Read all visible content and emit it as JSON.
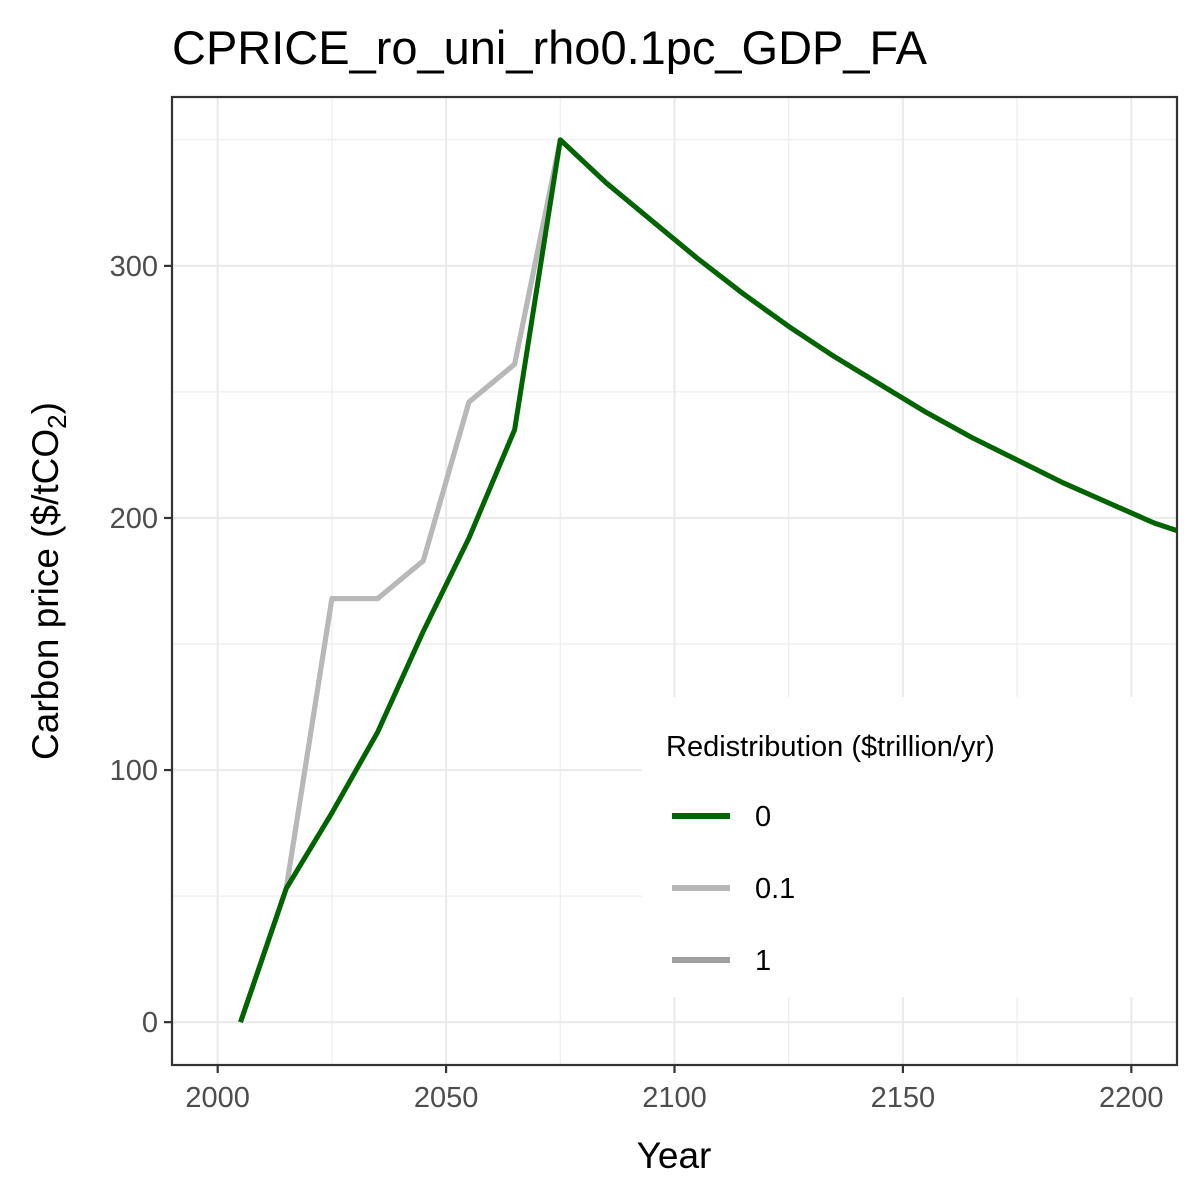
{
  "chart_data": {
    "type": "line",
    "title": "CPRICE_ro_uni_rho0.1pc_GDP_FA",
    "xlabel": "Year",
    "ylabel_main": "Carbon price ($/tCO",
    "ylabel_sub": "2",
    "ylabel_end": ")",
    "xlim": [
      1990,
      2210
    ],
    "ylim": [
      -17,
      367
    ],
    "x_major_ticks": [
      2000,
      2050,
      2100,
      2150,
      2200
    ],
    "x_minor_ticks": [
      2025,
      2075,
      2125,
      2175
    ],
    "y_major_ticks": [
      0,
      100,
      200,
      300
    ],
    "y_minor_ticks": [
      50,
      150,
      250,
      350
    ],
    "x_tick_labels": [
      "2000",
      "2050",
      "2100",
      "2150",
      "2200"
    ],
    "y_tick_labels": [
      "0",
      "100",
      "200",
      "300"
    ],
    "grid": true,
    "legend": {
      "title": "Redistribution ($trillion/yr)",
      "placement": "inside-bottom-right"
    },
    "series": [
      {
        "name": "1",
        "color": "#a0a0a0",
        "x": [
          2005,
          2015,
          2025,
          2035,
          2045,
          2055,
          2065,
          2075,
          2085,
          2095,
          2105,
          2115,
          2125,
          2135,
          2145,
          2155,
          2165,
          2175,
          2185,
          2195,
          2205,
          2210
        ],
        "values": [
          0,
          53,
          168,
          168,
          183,
          246,
          261,
          350,
          333,
          318,
          303,
          289,
          276,
          264,
          253,
          242,
          232,
          223,
          214,
          206,
          198,
          195
        ]
      },
      {
        "name": "0.1",
        "color": "#b8b8b8",
        "x": [
          2005,
          2015,
          2025,
          2035,
          2045,
          2055,
          2065,
          2075,
          2085,
          2095,
          2105,
          2115,
          2125,
          2135,
          2145,
          2155,
          2165,
          2175,
          2185,
          2195,
          2205,
          2210
        ],
        "values": [
          0,
          53,
          168,
          168,
          183,
          246,
          261,
          350,
          333,
          318,
          303,
          289,
          276,
          264,
          253,
          242,
          232,
          223,
          214,
          206,
          198,
          195
        ]
      },
      {
        "name": "0",
        "color": "#006400",
        "x": [
          2005,
          2015,
          2025,
          2035,
          2045,
          2055,
          2065,
          2075,
          2085,
          2095,
          2105,
          2115,
          2125,
          2135,
          2145,
          2155,
          2165,
          2175,
          2185,
          2195,
          2205,
          2210
        ],
        "values": [
          0,
          53,
          83,
          115,
          155,
          192,
          235,
          350,
          333,
          318,
          303,
          289,
          276,
          264,
          253,
          242,
          232,
          223,
          214,
          206,
          198,
          195
        ]
      }
    ],
    "legend_order": [
      "0",
      "0.1",
      "1"
    ]
  }
}
